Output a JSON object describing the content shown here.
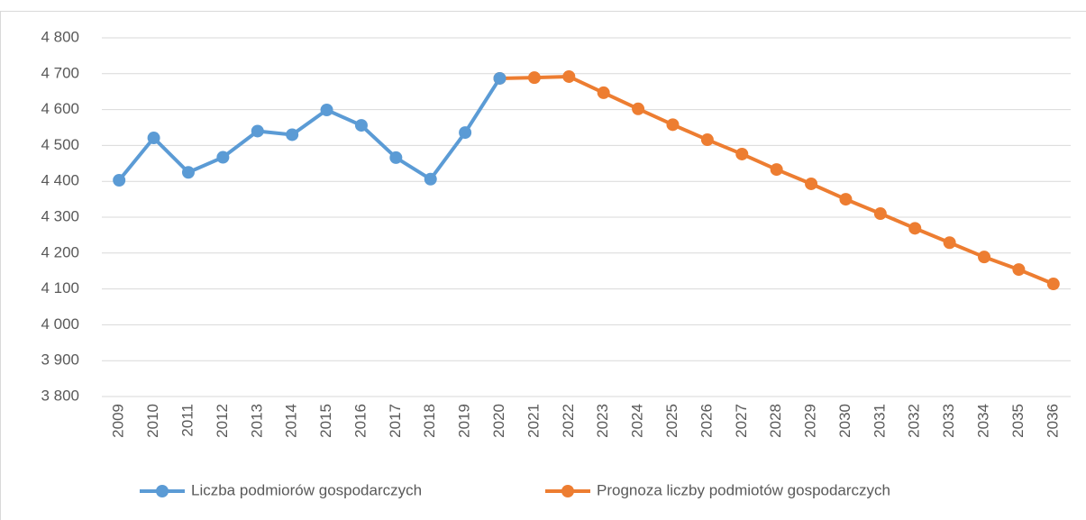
{
  "chart_data": {
    "type": "line",
    "categories": [
      "2009",
      "2010",
      "2011",
      "2012",
      "2013",
      "2014",
      "2015",
      "2016",
      "2017",
      "2018",
      "2019",
      "2020",
      "2021",
      "2022",
      "2023",
      "2024",
      "2025",
      "2026",
      "2027",
      "2028",
      "2029",
      "2030",
      "2031",
      "2032",
      "2033",
      "2034",
      "2035",
      "2036"
    ],
    "series": [
      {
        "name": "Liczba podmiorów gospodarczych",
        "color": "#5b9bd5",
        "values": [
          4403,
          4521,
          4425,
          4467,
          4540,
          4530,
          4599,
          4556,
          4466,
          4406,
          4536,
          4687,
          null,
          null,
          null,
          null,
          null,
          null,
          null,
          null,
          null,
          null,
          null,
          null,
          null,
          null,
          null,
          null
        ]
      },
      {
        "name": "Prognoza liczby podmiotów gospodarczych",
        "color": "#ed7d31",
        "values": [
          null,
          null,
          null,
          null,
          null,
          null,
          null,
          null,
          null,
          null,
          null,
          4687,
          4689,
          4692,
          4647,
          4602,
          4558,
          4516,
          4476,
          4433,
          4393,
          4350,
          4310,
          4269,
          4229,
          4189,
          4154,
          4114
        ]
      }
    ],
    "ylim": [
      3800,
      4800
    ],
    "yticks": [
      {
        "value": 3800,
        "label": "3 800"
      },
      {
        "value": 3900,
        "label": "3 900"
      },
      {
        "value": 4000,
        "label": "4 000"
      },
      {
        "value": 4100,
        "label": "4 100"
      },
      {
        "value": 4200,
        "label": "4 200"
      },
      {
        "value": 4300,
        "label": "4 300"
      },
      {
        "value": 4400,
        "label": "4 400"
      },
      {
        "value": 4500,
        "label": "4 500"
      },
      {
        "value": 4600,
        "label": "4 600"
      },
      {
        "value": 4700,
        "label": "4 700"
      },
      {
        "value": 4800,
        "label": "4 800"
      }
    ],
    "grid": true,
    "legend": "bottom"
  }
}
